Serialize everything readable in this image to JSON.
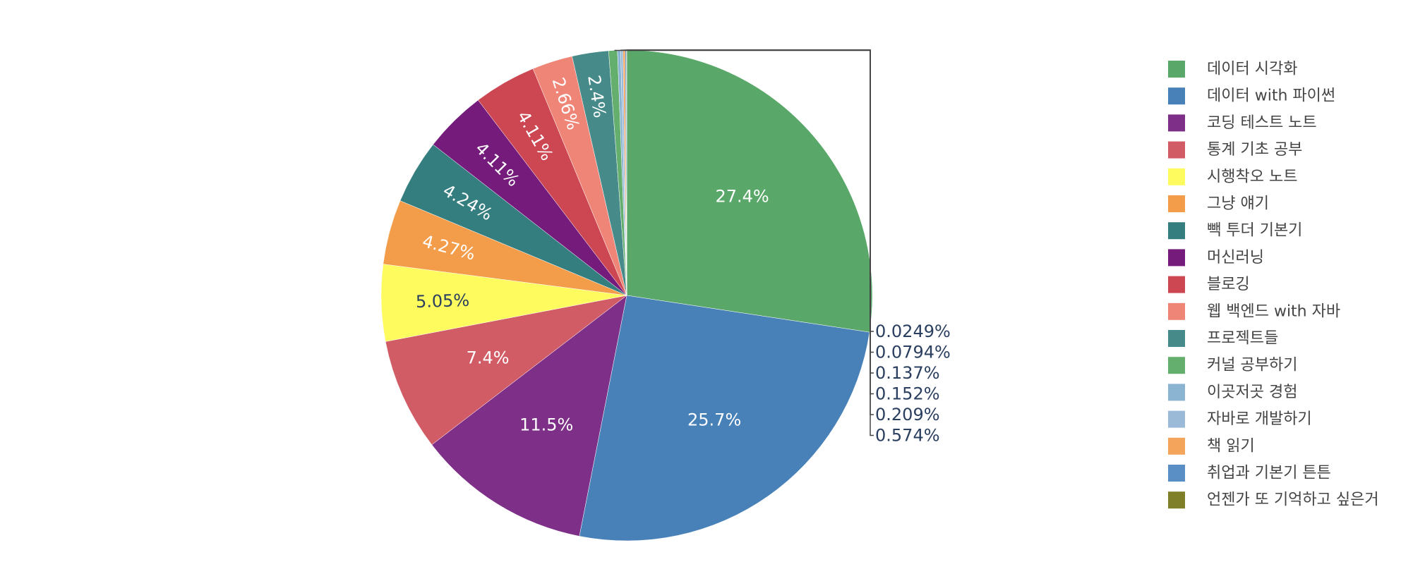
{
  "chart_data": {
    "type": "pie",
    "title": "",
    "legend_position": "right",
    "slices": [
      {
        "label": "데이터 시각화",
        "value": 27.4,
        "text": "27.4%",
        "color": "#59A869"
      },
      {
        "label": "데이터 with 파이썬",
        "value": 25.7,
        "text": "25.7%",
        "color": "#4881B8"
      },
      {
        "label": "코딩 테스트 노트",
        "value": 11.5,
        "text": "11.5%",
        "color": "#7E3089"
      },
      {
        "label": "통계 기초 공부",
        "value": 7.4,
        "text": "7.4%",
        "color": "#D25C65"
      },
      {
        "label": "시행착오 노트",
        "value": 5.05,
        "text": "5.05%",
        "color": "#FEFB5F"
      },
      {
        "label": "그냥 얘기",
        "value": 4.27,
        "text": "4.27%",
        "color": "#F39D4B"
      },
      {
        "label": "빽 투더 기본기",
        "value": 4.24,
        "text": "4.24%",
        "color": "#357E7F"
      },
      {
        "label": "머신러닝",
        "value": 4.11,
        "text": "4.11%",
        "color": "#741B7C"
      },
      {
        "label": "블로깅",
        "value": 4.11,
        "text": "4.11%",
        "color": "#CD4753"
      },
      {
        "label": "웹 백엔드 with 자바",
        "value": 2.66,
        "text": "2.66%",
        "color": "#EF8577"
      },
      {
        "label": "프로젝트들",
        "value": 2.4,
        "text": "2.4%",
        "color": "#478A8A"
      },
      {
        "label": "커널 공부하기",
        "value": 0.574,
        "text": "0.574%",
        "color": "#64AE6E"
      },
      {
        "label": "이곳저곳 경험",
        "value": 0.209,
        "text": "0.209%",
        "color": "#8BB4D3"
      },
      {
        "label": "자바로 개발하기",
        "value": 0.152,
        "text": "0.152%",
        "color": "#9BBAD8"
      },
      {
        "label": "책 읽기",
        "value": 0.137,
        "text": "0.137%",
        "color": "#F4A45B"
      },
      {
        "label": "취업과 기본기 튼튼",
        "value": 0.0794,
        "text": "0.0794%",
        "color": "#5A8FC6"
      },
      {
        "label": "언젠가 또 기억하고 싶은거",
        "value": 0.0249,
        "text": "0.0249%",
        "color": "#7F7F2A"
      }
    ]
  }
}
